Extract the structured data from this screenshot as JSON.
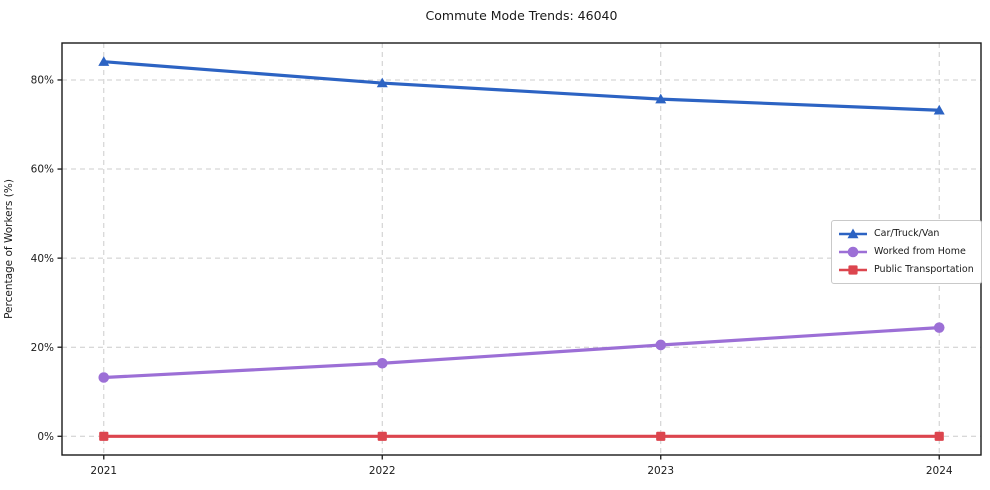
{
  "chart_data": {
    "type": "line",
    "title": "Commute Mode Trends: 46040",
    "xlabel": "",
    "ylabel": "Percentage of Workers (%)",
    "x": [
      2021,
      2022,
      2023,
      2024
    ],
    "xtick_labels": [
      "2021",
      "2022",
      "2023",
      "2024"
    ],
    "yticks": [
      0,
      20,
      40,
      60,
      80
    ],
    "ytick_labels": [
      "0%",
      "20%",
      "40%",
      "60%",
      "80%"
    ],
    "xlim": [
      2020.85,
      2024.15
    ],
    "ylim": [
      -4.2,
      88.3
    ],
    "grid": true,
    "grid_style": "dashed",
    "legend_position": "center right",
    "series": [
      {
        "name": "Car/Truck/Van",
        "color": "#2c63c3",
        "marker": "triangle",
        "values": [
          84.1,
          79.3,
          75.7,
          73.2
        ]
      },
      {
        "name": "Worked from Home",
        "color": "#9c6fd6",
        "marker": "circle",
        "values": [
          13.2,
          16.4,
          20.5,
          24.4
        ]
      },
      {
        "name": "Public Transportation",
        "color": "#dc454e",
        "marker": "square",
        "values": [
          0,
          0,
          0,
          0
        ]
      }
    ],
    "style": {
      "axis_color": "#1a1a1a",
      "grid_color": "#cccccc",
      "background": "#ffffff",
      "line_width": 3.2
    }
  }
}
